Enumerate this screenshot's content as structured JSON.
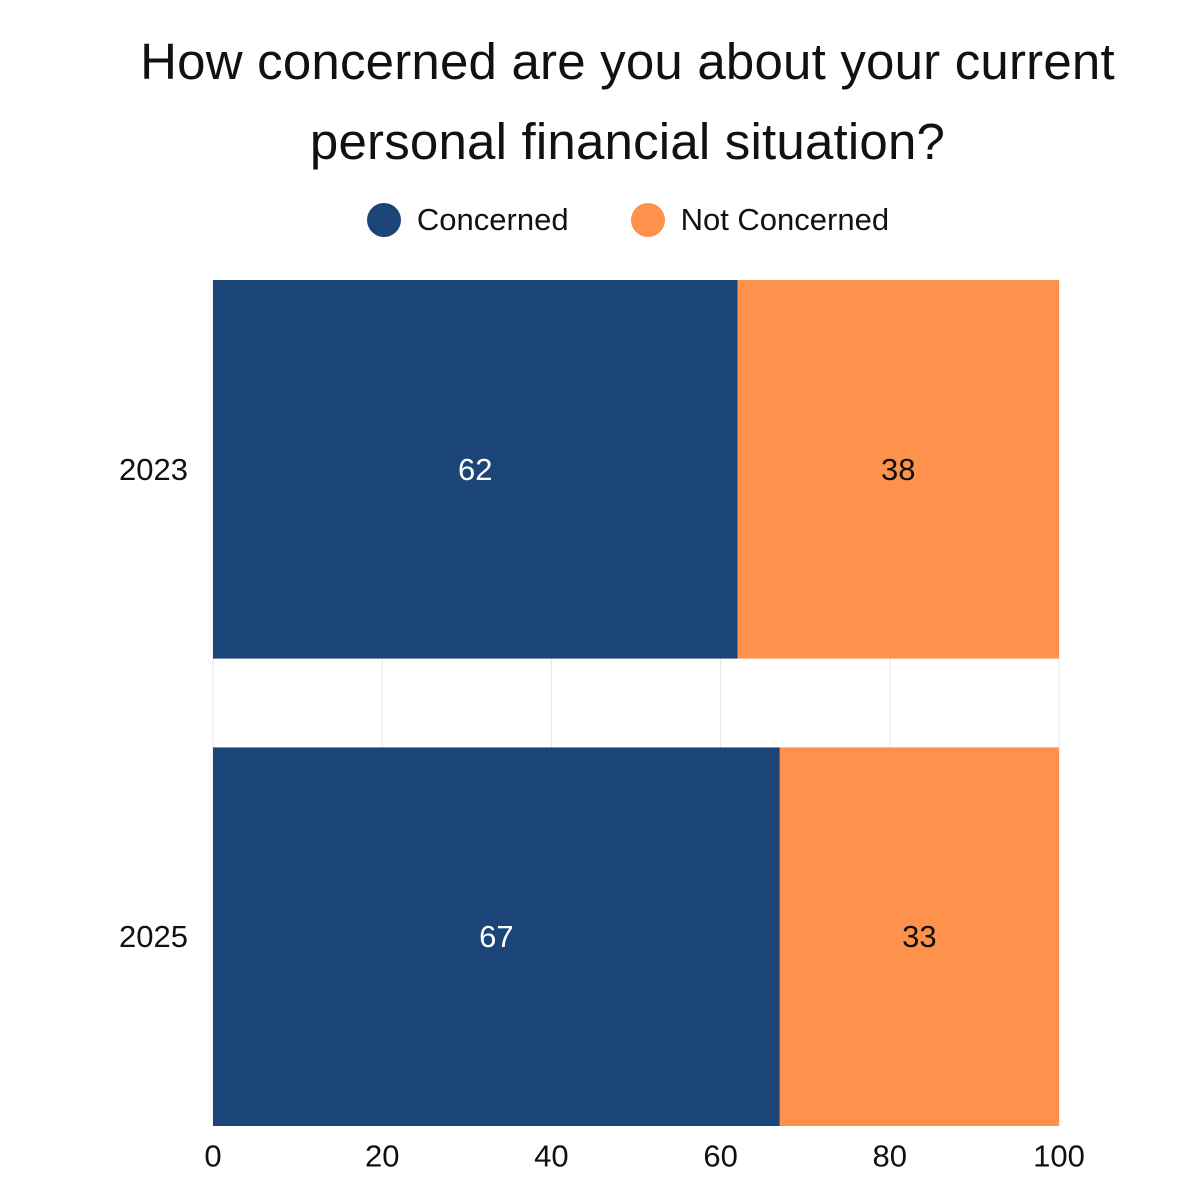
{
  "chart_data": {
    "type": "bar",
    "orientation": "horizontal",
    "stacked": true,
    "title": "How concerned are you about your current personal financial situation?",
    "categories": [
      "2023",
      "2025"
    ],
    "series": [
      {
        "name": "Concerned",
        "values": [
          62,
          67
        ],
        "color": "#1b4577",
        "label_color": "#ffffff"
      },
      {
        "name": "Not Concerned",
        "values": [
          38,
          33
        ],
        "color": "#fe914b",
        "label_color": "#111111"
      }
    ],
    "xlim": [
      0,
      100
    ],
    "xticks": [
      "0",
      "20",
      "40",
      "60",
      "80",
      "100"
    ],
    "xlabel": "",
    "ylabel": "",
    "grid": true,
    "legend_position": "top-center"
  }
}
